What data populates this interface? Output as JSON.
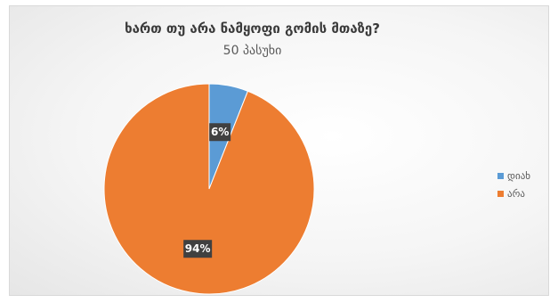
{
  "chart_data": {
    "type": "pie",
    "title": "ხართ თუ არა ნამყოფი გომის მთაზე?",
    "subtitle": "50 პასუხი",
    "categories": [
      "დიახ",
      "არა"
    ],
    "values": [
      6,
      94
    ],
    "labels": [
      "6%",
      "94%"
    ],
    "colors": [
      "#5b9bd5",
      "#ed7d31"
    ],
    "legend_position": "right"
  }
}
